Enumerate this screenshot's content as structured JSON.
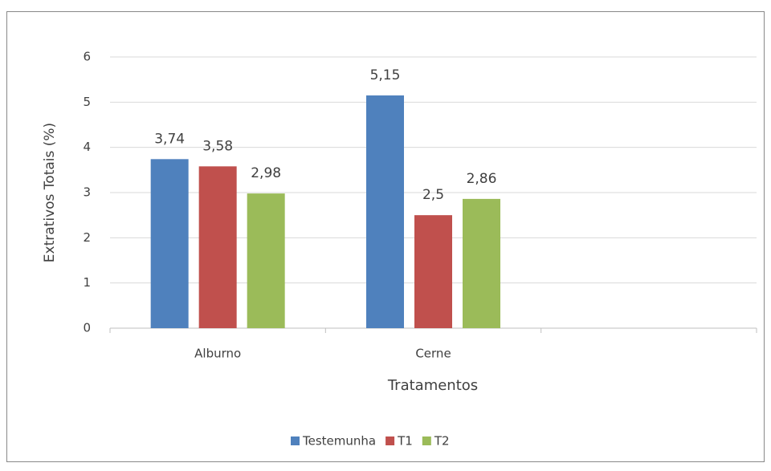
{
  "chart_data": {
    "type": "bar",
    "y_label": "Extrativos Totais (%)",
    "x_label": "Tratamentos",
    "categories": [
      "Alburno",
      "Cerne",
      null
    ],
    "series": [
      {
        "name": "Testemunha",
        "color": "#4f81bd",
        "values": [
          3.74,
          5.15,
          null
        ],
        "value_labels": [
          "3,74",
          "5,15",
          null
        ]
      },
      {
        "name": "T1",
        "color": "#c0504d",
        "values": [
          3.58,
          2.5,
          null
        ],
        "value_labels": [
          "3,58",
          "2,5",
          null
        ]
      },
      {
        "name": "T2",
        "color": "#9bbb59",
        "values": [
          2.98,
          2.86,
          null
        ],
        "value_labels": [
          "2,98",
          "2,86",
          null
        ]
      }
    ],
    "ylim": [
      0,
      6
    ],
    "yticks": [
      0,
      1,
      2,
      3,
      4,
      5,
      6
    ],
    "grid": true,
    "legend": "bottom"
  }
}
